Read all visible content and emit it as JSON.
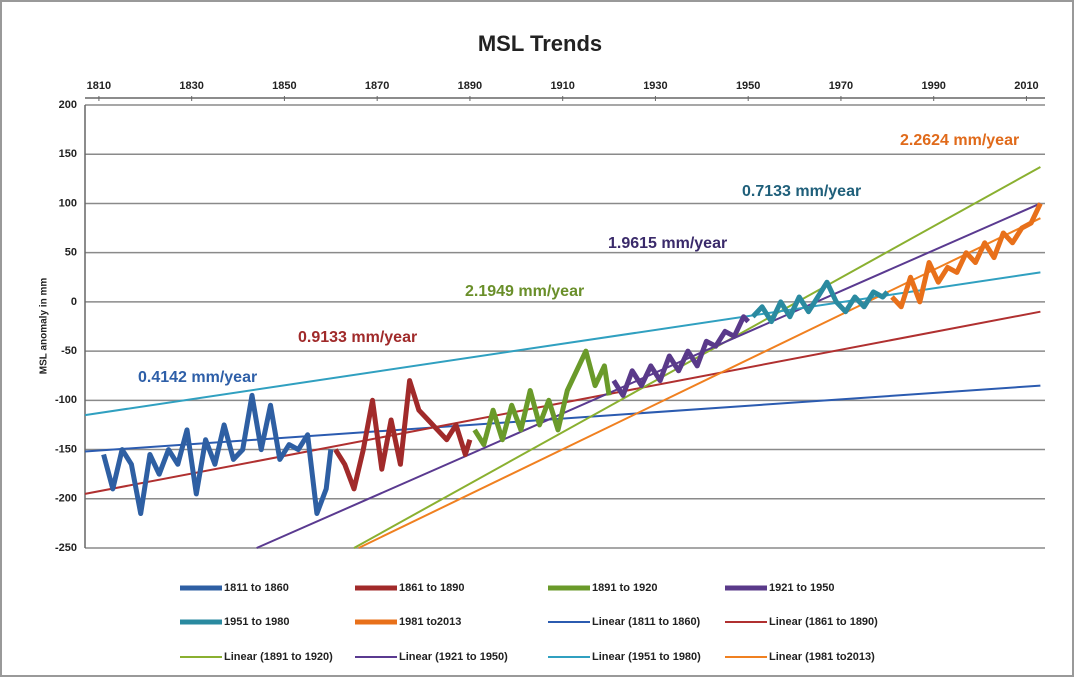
{
  "chart_data": {
    "type": "line",
    "title": "MSL Trends",
    "y_label": "MSL anomaly in mm",
    "xlim": [
      1807,
      2014
    ],
    "xticks": [
      1810,
      1830,
      1850,
      1870,
      1890,
      1910,
      1930,
      1950,
      1970,
      1990,
      2010
    ],
    "ylim": [
      -250,
      200
    ],
    "yticks": [
      -250,
      -200,
      -150,
      -100,
      -50,
      0,
      50,
      100,
      150,
      200
    ],
    "grid": true,
    "legend": "bottom",
    "annotations": [
      {
        "text": "0.4142 mm/year",
        "color": "#2e5fa8"
      },
      {
        "text": "0.9133 mm/year",
        "color": "#a02a2a"
      },
      {
        "text": "2.1949 mm/year",
        "color": "#6a8f2a"
      },
      {
        "text": "1.9615 mm/year",
        "color": "#3a2a6a"
      },
      {
        "text": "0.7133 mm/year",
        "color": "#1f5f7a"
      },
      {
        "text": "2.2624 mm/year",
        "color": "#e06a1a"
      }
    ],
    "series": [
      {
        "name": "1811 to 1860",
        "color": "#2e5fa3",
        "width": 5,
        "x": [
          1811,
          1813,
          1815,
          1817,
          1819,
          1821,
          1823,
          1825,
          1827,
          1829,
          1831,
          1833,
          1835,
          1837,
          1839,
          1841,
          1843,
          1845,
          1847,
          1849,
          1851,
          1853,
          1855,
          1857,
          1859,
          1860
        ],
        "values": [
          -155,
          -190,
          -150,
          -165,
          -215,
          -155,
          -175,
          -150,
          -165,
          -130,
          -195,
          -140,
          -165,
          -125,
          -160,
          -150,
          -95,
          -150,
          -105,
          -160,
          -145,
          -150,
          -135,
          -215,
          -190,
          -150
        ]
      },
      {
        "name": "1861 to 1890",
        "color": "#a12a2a",
        "width": 5,
        "x": [
          1861,
          1863,
          1865,
          1867,
          1869,
          1871,
          1873,
          1875,
          1877,
          1879,
          1881,
          1883,
          1885,
          1887,
          1889,
          1890
        ],
        "values": [
          -150,
          -165,
          -190,
          -150,
          -100,
          -170,
          -120,
          -165,
          -80,
          -110,
          -120,
          -130,
          -140,
          -125,
          -155,
          -140
        ]
      },
      {
        "name": "1891 to 1920",
        "color": "#6a9a2a",
        "width": 5,
        "x": [
          1891,
          1893,
          1895,
          1897,
          1899,
          1901,
          1903,
          1905,
          1907,
          1909,
          1911,
          1913,
          1915,
          1917,
          1919,
          1920
        ],
        "values": [
          -130,
          -145,
          -110,
          -140,
          -105,
          -130,
          -90,
          -125,
          -100,
          -130,
          -90,
          -70,
          -50,
          -85,
          -65,
          -95
        ]
      },
      {
        "name": "1921 to 1950",
        "color": "#5a3a8a",
        "width": 5,
        "x": [
          1921,
          1923,
          1925,
          1927,
          1929,
          1931,
          1933,
          1935,
          1937,
          1939,
          1941,
          1943,
          1945,
          1947,
          1949,
          1950
        ],
        "values": [
          -80,
          -95,
          -70,
          -85,
          -65,
          -80,
          -55,
          -70,
          -50,
          -65,
          -40,
          -45,
          -30,
          -35,
          -15,
          -20
        ]
      },
      {
        "name": "1951 to 1980",
        "color": "#2a8aa0",
        "width": 5,
        "x": [
          1951,
          1953,
          1955,
          1957,
          1959,
          1961,
          1963,
          1965,
          1967,
          1969,
          1971,
          1973,
          1975,
          1977,
          1979,
          1980
        ],
        "values": [
          -15,
          -5,
          -20,
          0,
          -15,
          5,
          -10,
          5,
          20,
          0,
          -10,
          5,
          -5,
          10,
          5,
          10
        ]
      },
      {
        "name": "1981 to2013",
        "color": "#e8701a",
        "width": 5,
        "x": [
          1981,
          1983,
          1985,
          1987,
          1989,
          1991,
          1993,
          1995,
          1997,
          1999,
          2001,
          2003,
          2005,
          2007,
          2009,
          2011,
          2013
        ],
        "values": [
          5,
          -5,
          25,
          0,
          40,
          20,
          35,
          30,
          50,
          40,
          60,
          45,
          70,
          60,
          75,
          80,
          100
        ]
      },
      {
        "name": "Linear (1811 to 1860)",
        "color": "#2b5bb0",
        "width": 2,
        "x": [
          1807,
          2013
        ],
        "values": [
          -152,
          -85
        ]
      },
      {
        "name": "Linear (1861 to 1890)",
        "color": "#b03030",
        "width": 2,
        "x": [
          1807,
          2013
        ],
        "values": [
          -195,
          -10
        ]
      },
      {
        "name": "Linear (1891 to 1920)",
        "color": "#8ab030",
        "width": 2,
        "x": [
          1865,
          2013
        ],
        "values": [
          -250,
          137
        ]
      },
      {
        "name": "Linear (1921 to 1950)",
        "color": "#5a3a90",
        "width": 2,
        "x": [
          1844,
          2013
        ],
        "values": [
          -250,
          100
        ]
      },
      {
        "name": "Linear (1951 to 1980)",
        "color": "#30a0c0",
        "width": 2,
        "x": [
          1807,
          2013
        ],
        "values": [
          -115,
          30
        ]
      },
      {
        "name": "Linear (1981 to2013)",
        "color": "#f08020",
        "width": 2,
        "x": [
          1866,
          2013
        ],
        "values": [
          -250,
          85
        ]
      }
    ]
  }
}
